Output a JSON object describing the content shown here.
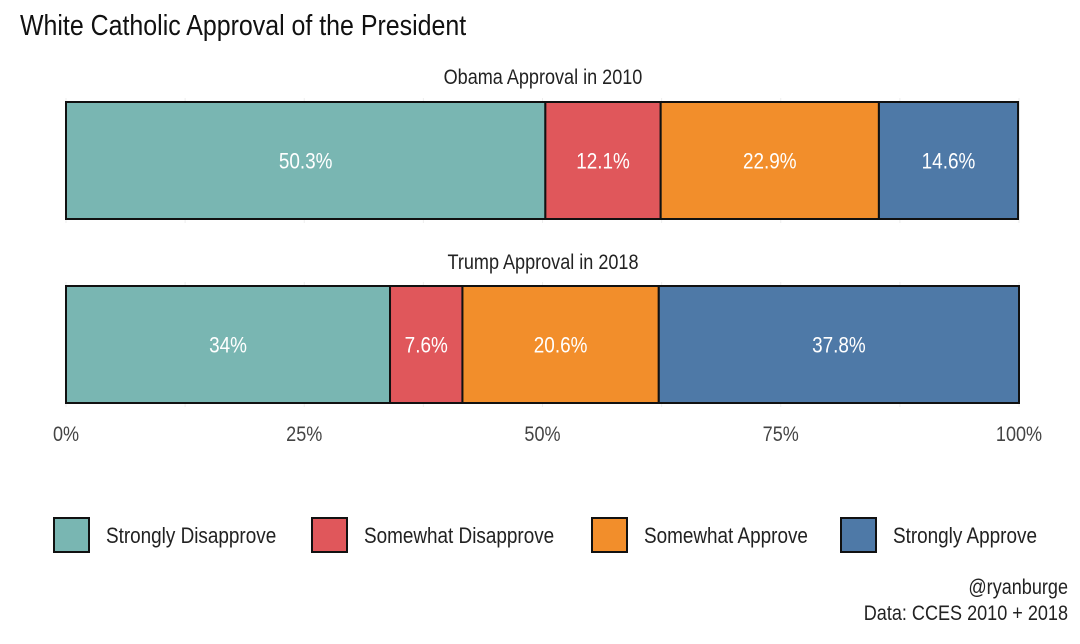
{
  "chart_data": {
    "type": "bar",
    "orientation": "horizontal-stacked",
    "title": "White Catholic Approval of the President",
    "xlim": [
      0,
      100
    ],
    "x_ticks": [
      "0%",
      "25%",
      "50%",
      "75%",
      "100%"
    ],
    "x_tick_values": [
      0,
      25,
      50,
      75,
      100
    ],
    "grid": true,
    "legend_placement": "bottom",
    "categories": [
      "Strongly Disapprove",
      "Somewhat Disapprove",
      "Somewhat Approve",
      "Strongly Approve"
    ],
    "colors": [
      "#79b6b2",
      "#e0575b",
      "#f28e2b",
      "#4e79a7"
    ],
    "panels": [
      {
        "title": "Obama Approval in 2010",
        "values": [
          50.3,
          12.1,
          22.9,
          14.6
        ],
        "labels": [
          "50.3%",
          "12.1%",
          "22.9%",
          "14.6%"
        ]
      },
      {
        "title": "Trump Approval in 2018",
        "values": [
          34,
          7.6,
          20.6,
          37.8
        ],
        "labels": [
          "34%",
          "7.6%",
          "20.6%",
          "37.8%"
        ]
      }
    ],
    "caption": [
      "@ryanburge",
      "Data: CCES 2010 + 2018"
    ]
  }
}
